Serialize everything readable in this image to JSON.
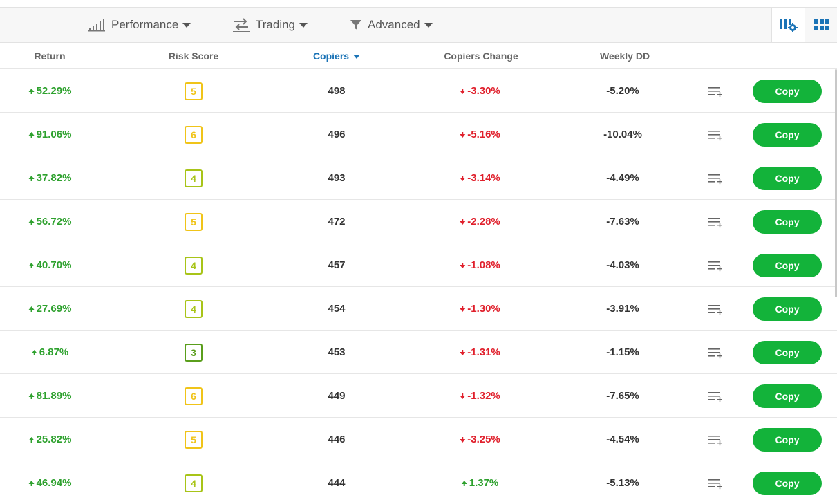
{
  "filters": {
    "performance": {
      "label": "Performance",
      "icon": "bar-chart-icon"
    },
    "trading": {
      "label": "Trading",
      "icon": "swap-arrows-icon"
    },
    "advanced": {
      "label": "Advanced",
      "icon": "funnel-icon"
    }
  },
  "view_controls": {
    "columns_icon": "columns-settings-icon",
    "grid_icon": "grid-view-icon",
    "accent": "#1a73b6"
  },
  "columns": {
    "return": "Return",
    "risk_score": "Risk Score",
    "copiers": "Copiers",
    "copiers_change": "Copiers Change",
    "weekly_dd": "Weekly DD"
  },
  "sort": {
    "column": "copiers",
    "direction": "desc"
  },
  "copy_label": "Copy",
  "colors": {
    "positive": "#2ea12e",
    "negative": "#e0202c",
    "copy_button": "#13b33a",
    "risk_yellow": "#f0c419",
    "risk_lime": "#a8c418",
    "risk_green": "#5a9e1c"
  },
  "rows": [
    {
      "return": "52.29%",
      "return_dir": "up",
      "risk": "5",
      "copiers": "498",
      "change": "-3.30%",
      "change_dir": "down",
      "weekly_dd": "-5.20%"
    },
    {
      "return": "91.06%",
      "return_dir": "up",
      "risk": "6",
      "copiers": "496",
      "change": "-5.16%",
      "change_dir": "down",
      "weekly_dd": "-10.04%"
    },
    {
      "return": "37.82%",
      "return_dir": "up",
      "risk": "4",
      "copiers": "493",
      "change": "-3.14%",
      "change_dir": "down",
      "weekly_dd": "-4.49%"
    },
    {
      "return": "56.72%",
      "return_dir": "up",
      "risk": "5",
      "copiers": "472",
      "change": "-2.28%",
      "change_dir": "down",
      "weekly_dd": "-7.63%"
    },
    {
      "return": "40.70%",
      "return_dir": "up",
      "risk": "4",
      "copiers": "457",
      "change": "-1.08%",
      "change_dir": "down",
      "weekly_dd": "-4.03%"
    },
    {
      "return": "27.69%",
      "return_dir": "up",
      "risk": "4",
      "copiers": "454",
      "change": "-1.30%",
      "change_dir": "down",
      "weekly_dd": "-3.91%"
    },
    {
      "return": "6.87%",
      "return_dir": "up",
      "risk": "3",
      "copiers": "453",
      "change": "-1.31%",
      "change_dir": "down",
      "weekly_dd": "-1.15%"
    },
    {
      "return": "81.89%",
      "return_dir": "up",
      "risk": "6",
      "copiers": "449",
      "change": "-1.32%",
      "change_dir": "down",
      "weekly_dd": "-7.65%"
    },
    {
      "return": "25.82%",
      "return_dir": "up",
      "risk": "5",
      "copiers": "446",
      "change": "-3.25%",
      "change_dir": "down",
      "weekly_dd": "-4.54%"
    },
    {
      "return": "46.94%",
      "return_dir": "up",
      "risk": "4",
      "copiers": "444",
      "change": "1.37%",
      "change_dir": "up",
      "weekly_dd": "-5.13%"
    }
  ]
}
